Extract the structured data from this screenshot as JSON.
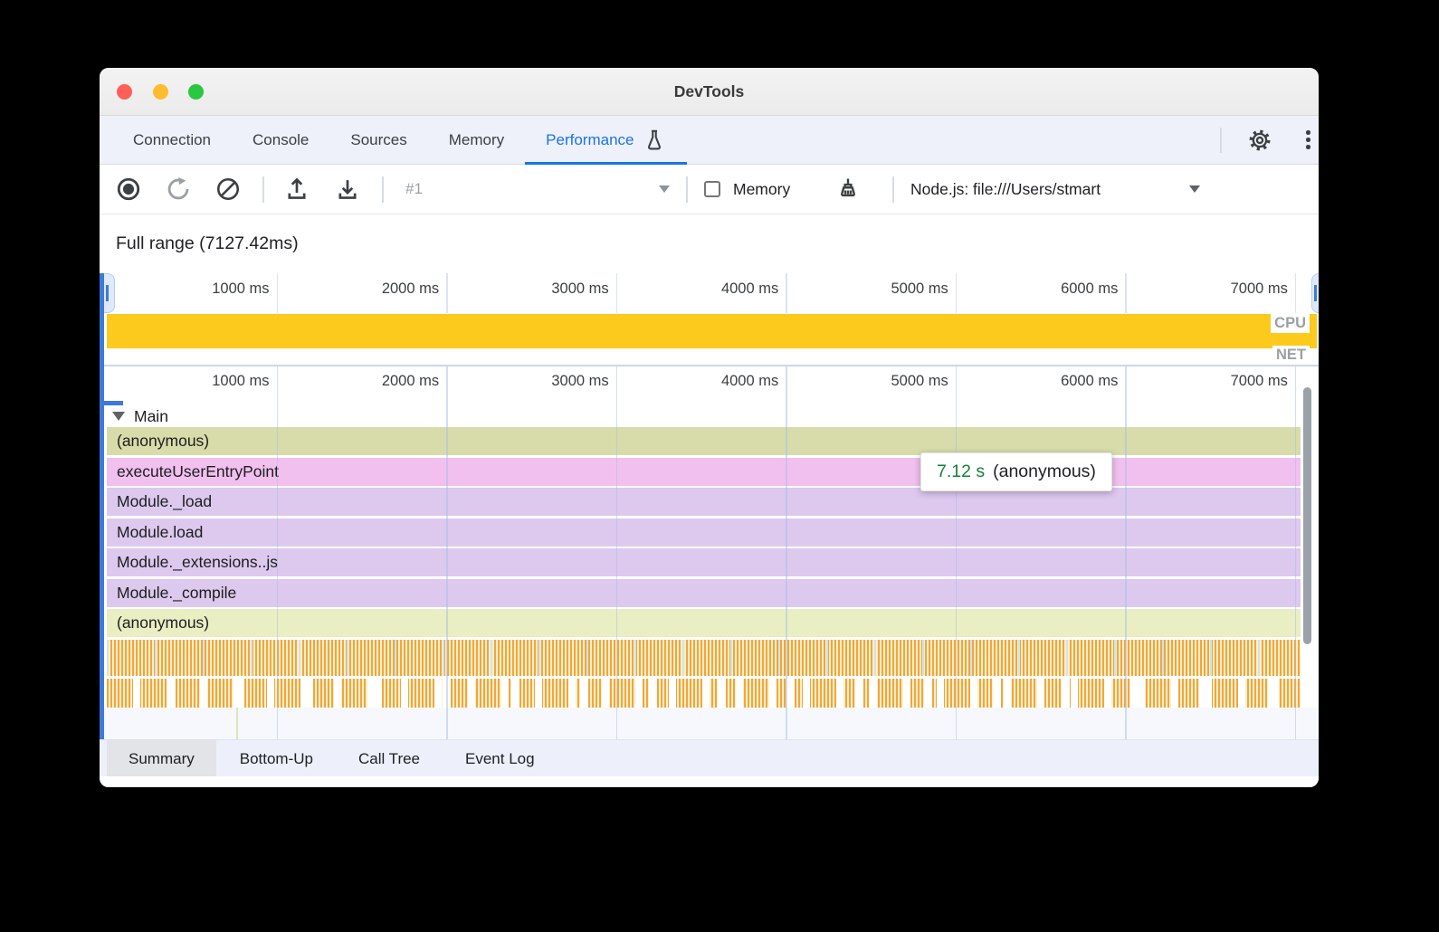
{
  "window": {
    "title": "DevTools"
  },
  "top_tabs": {
    "items": [
      "Connection",
      "Console",
      "Sources",
      "Memory",
      "Performance"
    ],
    "active_index": 4
  },
  "toolbar": {
    "history_selected": "#1",
    "memory_label": "Memory",
    "memory_checked": false,
    "target_selector": "Node.js: file:///Users/stmart"
  },
  "overview": {
    "full_range": "Full range (7127.42ms)",
    "ticks": [
      "1000 ms",
      "2000 ms",
      "3000 ms",
      "4000 ms",
      "5000 ms",
      "6000 ms",
      "7000 ms"
    ],
    "cpu_label": "CPU",
    "net_label": "NET"
  },
  "flame": {
    "track": "Main",
    "rows": [
      {
        "label": "(anonymous)",
        "color": "#d7dcaa"
      },
      {
        "label": "executeUserEntryPoint",
        "color": "#f1c0ee"
      },
      {
        "label": "Module._load",
        "color": "#ddc8ee"
      },
      {
        "label": "Module.load",
        "color": "#ddc8ee"
      },
      {
        "label": "Module._extensions..js",
        "color": "#ddc8ee"
      },
      {
        "label": "Module._compile",
        "color": "#ddc8ee"
      },
      {
        "label": "(anonymous)",
        "color": "#e9eec3"
      }
    ]
  },
  "tooltip": {
    "duration": "7.12 s",
    "name": "(anonymous)"
  },
  "bottom_tabs": {
    "items": [
      "Summary",
      "Bottom-Up",
      "Call Tree",
      "Event Log"
    ],
    "active_index": 0
  },
  "colors": {
    "accent_blue": "#1a73e8",
    "cpu_bar_yellow": "#fcc91d",
    "tooltip_duration_green": "#188038",
    "activity_stripe_orange": "#efa73c"
  }
}
